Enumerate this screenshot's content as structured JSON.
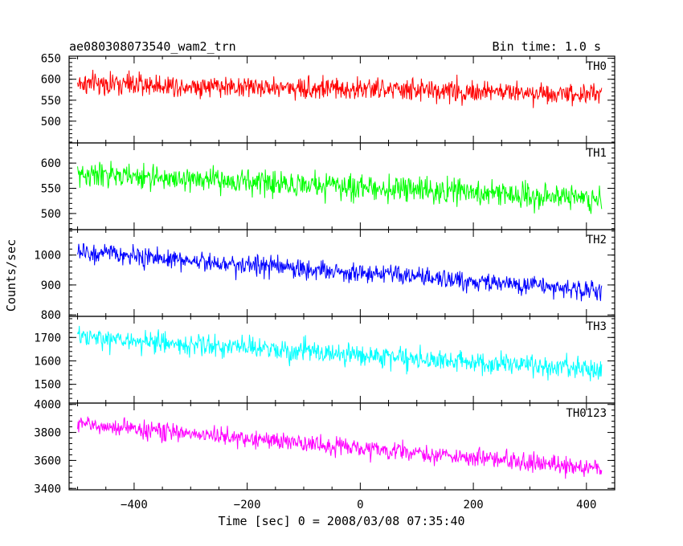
{
  "chart_data": {
    "type": "line",
    "title_left": "ae080308073540_wam2_trn",
    "title_right": "Bin time: 1.0 s",
    "xlabel": "Time [sec] 0 = 2008/03/08 07:35:40",
    "ylabel": "Counts/sec",
    "xlim": [
      -515,
      450
    ],
    "x_range": [
      -500,
      427
    ],
    "x_step": 1,
    "x_ticks": [
      -400,
      -200,
      0,
      200,
      400
    ],
    "x_tick_labels": [
      "−400",
      "−200",
      "0",
      "200",
      "400"
    ],
    "grid": false,
    "panels": [
      {
        "name": "TH0",
        "color": "#ff0000",
        "ylim": [
          448,
          655
        ],
        "y_ticks": [
          500,
          550,
          600,
          650
        ],
        "y_tick_labels": [
          "500",
          "550",
          "600",
          "650"
        ],
        "start_mean": 590,
        "end_mean": 565,
        "noise": 26
      },
      {
        "name": "TH1",
        "color": "#00ff00",
        "ylim": [
          468,
          640
        ],
        "y_ticks": [
          500,
          550,
          600
        ],
        "y_tick_labels": [
          "500",
          "550",
          "600"
        ],
        "start_mean": 578,
        "end_mean": 530,
        "noise": 24
      },
      {
        "name": "TH2",
        "color": "#0000ff",
        "ylim": [
          795,
          1085
        ],
        "y_ticks": [
          800,
          900,
          1000
        ],
        "y_tick_labels": [
          "800",
          "900",
          "1000"
        ],
        "start_mean": 1010,
        "end_mean": 880,
        "noise": 32
      },
      {
        "name": "TH3",
        "color": "#00ffff",
        "ylim": [
          1420,
          1790
        ],
        "y_ticks": [
          1500,
          1600,
          1700
        ],
        "y_tick_labels": [
          "1500",
          "1600",
          "1700"
        ],
        "start_mean": 1700,
        "end_mean": 1560,
        "noise": 45
      },
      {
        "name": "TH0123",
        "color": "#ff00ff",
        "ylim": [
          3390,
          4010
        ],
        "y_ticks": [
          3400,
          3600,
          3800,
          4000
        ],
        "y_tick_labels": [
          "3400",
          "3600",
          "3800",
          "4000"
        ],
        "start_mean": 3860,
        "end_mean": 3540,
        "noise": 62
      }
    ]
  }
}
